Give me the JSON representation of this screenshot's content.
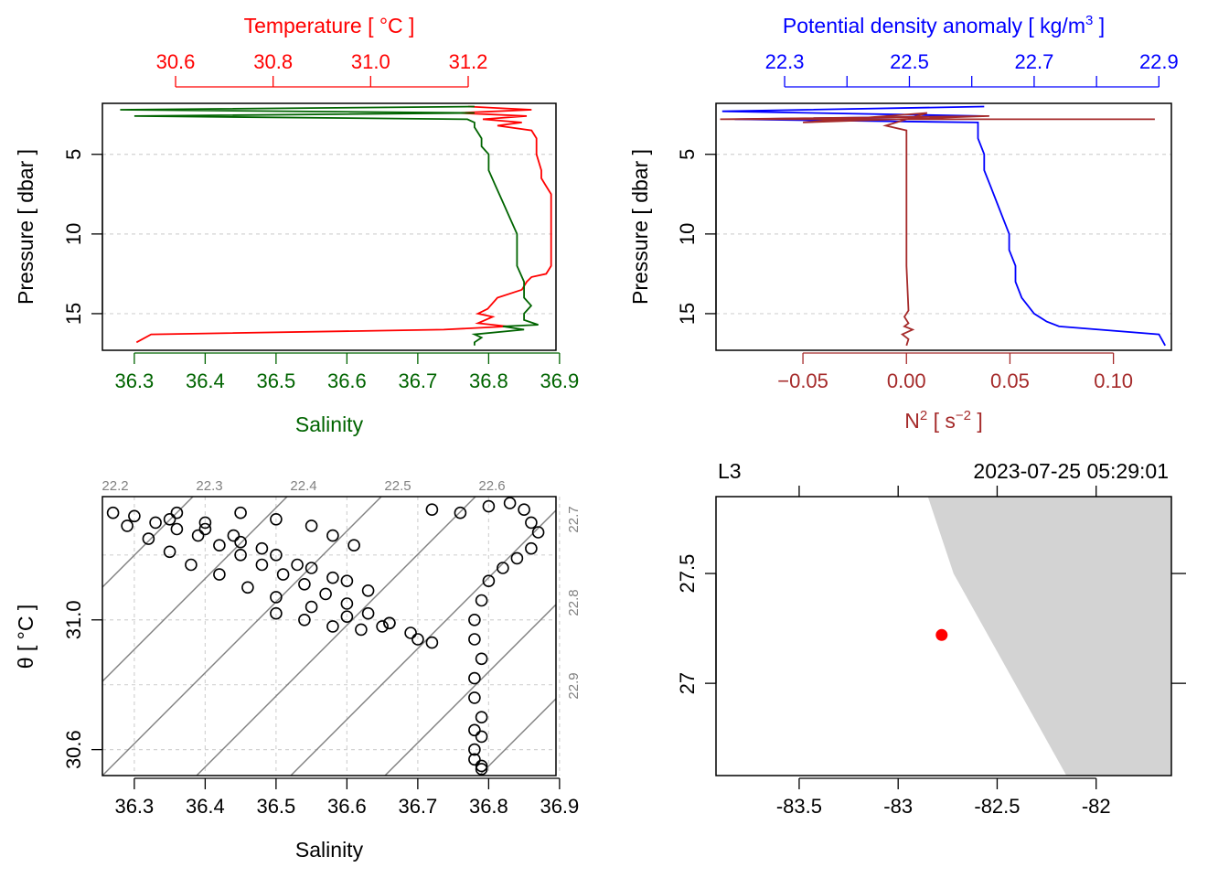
{
  "colors": {
    "temperature": "#ff0000",
    "salinity": "#006400",
    "density": "#0000ff",
    "n2": "#a52a2a",
    "isopycnal": "#808080",
    "grid": "#d3d3d3",
    "land": "#d3d3d3",
    "station": "#ff0000",
    "axis": "#000000"
  },
  "chart_data": [
    {
      "type": "line",
      "panel": "profile-temperature-salinity",
      "y_axis": {
        "label": "Pressure [ dbar ]",
        "range": [
          17.3,
          1.8
        ],
        "ticks": [
          "5",
          "10",
          "15"
        ],
        "reversed": true,
        "grid": true
      },
      "top_axis": {
        "label": "Temperature [ °C ]",
        "range": [
          30.45,
          31.38
        ],
        "ticks": [
          "30.6",
          "30.8",
          "31.0",
          "31.2"
        ]
      },
      "bottom_axis": {
        "label": "Salinity",
        "range": [
          36.255,
          36.895
        ],
        "ticks": [
          "36.3",
          "36.4",
          "36.5",
          "36.6",
          "36.7",
          "36.8",
          "36.9"
        ]
      },
      "series": [
        {
          "variable": "temperature",
          "x": [
            31.2,
            31.33,
            31.18,
            31.32,
            31.23,
            31.31,
            31.26,
            31.33,
            31.34,
            31.34,
            31.35,
            31.35,
            31.36,
            31.37,
            31.37,
            31.37,
            31.36,
            31.33,
            31.32,
            31.31,
            31.26,
            31.24,
            31.22,
            31.25,
            31.22,
            31.28,
            31.15,
            30.55,
            30.52
          ],
          "y": [
            2.0,
            2.2,
            2.4,
            2.6,
            2.8,
            3.0,
            3.2,
            3.5,
            4.0,
            5.0,
            6.0,
            6.5,
            7.0,
            7.5,
            9.0,
            12.0,
            12.5,
            12.7,
            13.0,
            13.5,
            14.0,
            14.7,
            15.0,
            15.2,
            15.6,
            15.8,
            16.0,
            16.3,
            16.8
          ]
        },
        {
          "variable": "salinity",
          "x": [
            36.78,
            36.28,
            36.78,
            36.3,
            36.77,
            36.78,
            36.78,
            36.79,
            36.79,
            36.8,
            36.8,
            36.81,
            36.82,
            36.83,
            36.84,
            36.84,
            36.84,
            36.85,
            36.85,
            36.86,
            36.85,
            36.85,
            36.87,
            36.82,
            36.85,
            36.78,
            36.79,
            36.78,
            36.78
          ],
          "y": [
            2.0,
            2.2,
            2.4,
            2.6,
            2.8,
            3.0,
            3.3,
            4.0,
            4.5,
            5.0,
            6.0,
            7.0,
            8.0,
            9.0,
            10.0,
            11.0,
            12.0,
            13.0,
            14.0,
            14.5,
            15.0,
            15.4,
            15.7,
            15.8,
            16.0,
            16.3,
            16.5,
            16.8,
            17.0
          ]
        }
      ]
    },
    {
      "type": "line",
      "panel": "profile-density-n2",
      "y_axis": {
        "label": "Pressure [ dbar ]",
        "range": [
          17.3,
          1.8
        ],
        "ticks": [
          "5",
          "10",
          "15"
        ],
        "reversed": true,
        "grid": true
      },
      "top_axis": {
        "label_prefix": "Potential density anomaly [ kg/m",
        "label_sup": "3",
        "label_suffix": " ]",
        "range": [
          22.19,
          22.92
        ],
        "ticks": [
          "22.3",
          "",
          "22.5",
          "",
          "22.7",
          "",
          "22.9"
        ]
      },
      "bottom_axis": {
        "label_prefix": "N",
        "label_sup": "2",
        "label_mid": " [ s",
        "label_sup2": "−2",
        "label_suffix": " ]",
        "range": [
          -0.092,
          0.128
        ],
        "ticks": [
          "−0.05",
          "0.00",
          "0.05",
          "0.10"
        ]
      },
      "series": [
        {
          "variable": "density",
          "x": [
            22.62,
            22.2,
            22.62,
            22.22,
            22.61,
            22.61,
            22.62,
            22.62,
            22.63,
            22.64,
            22.65,
            22.66,
            22.66,
            22.67,
            22.67,
            22.68,
            22.7,
            22.72,
            22.74,
            22.9,
            22.91
          ],
          "y": [
            2.0,
            2.3,
            2.6,
            2.8,
            3.0,
            4.0,
            5.0,
            6.0,
            7.0,
            8.0,
            9.0,
            10.0,
            11.0,
            12.0,
            13.0,
            14.0,
            15.0,
            15.5,
            15.8,
            16.3,
            17.0
          ]
        },
        {
          "variable": "N2",
          "x": [
            0.12,
            -0.09,
            0.04,
            -0.05,
            0.01,
            -0.01,
            0.0,
            0.0,
            0.0,
            0.0,
            0.001,
            -0.001,
            0.001,
            -0.001,
            0.003,
            -0.002,
            0.001,
            0.0
          ],
          "y": [
            2.8,
            2.8,
            2.6,
            3.0,
            2.4,
            3.2,
            3.5,
            5.0,
            8.0,
            12.0,
            14.8,
            15.2,
            15.6,
            15.8,
            16.0,
            16.3,
            16.6,
            17.0
          ]
        }
      ]
    },
    {
      "type": "scatter",
      "panel": "TS-diagram",
      "x_axis": {
        "label": "Salinity",
        "range": [
          36.255,
          36.895
        ],
        "ticks": [
          "36.3",
          "36.4",
          "36.5",
          "36.6",
          "36.7",
          "36.8",
          "36.9"
        ]
      },
      "y_axis": {
        "label": "θ [ °C ]",
        "range": [
          30.52,
          31.38
        ],
        "ticks": [
          "30.6",
          "31.0"
        ]
      },
      "isopycnals_top": [
        "22.2",
        "22.3",
        "22.4",
        "22.5",
        "22.6"
      ],
      "isopycnals_right": [
        "22.7",
        "22.8",
        "22.9"
      ],
      "grid": true,
      "series": [
        {
          "name": "",
          "x": [
            36.27,
            36.3,
            36.33,
            36.36,
            36.39,
            36.42,
            36.45,
            36.48,
            36.51,
            36.54,
            36.57,
            36.6,
            36.63,
            36.66,
            36.69,
            36.72,
            36.7,
            36.65,
            36.6,
            36.55,
            36.5,
            36.46,
            36.42,
            36.38,
            36.35,
            36.32,
            36.29,
            36.35,
            36.4,
            36.45,
            36.5,
            36.55,
            36.6,
            36.63,
            36.58,
            36.53,
            36.48,
            36.44,
            36.4,
            36.36,
            36.45,
            36.5,
            36.55,
            36.58,
            36.61,
            36.5,
            36.54,
            36.58,
            36.62,
            36.66,
            36.72,
            36.76,
            36.8,
            36.83,
            36.85,
            36.86,
            36.87,
            36.86,
            36.84,
            36.82,
            36.8,
            36.79,
            36.78,
            36.78,
            36.79,
            36.78,
            36.78,
            36.79,
            36.78,
            36.79,
            36.78,
            36.78,
            36.79,
            36.79
          ],
          "y": [
            31.33,
            31.32,
            31.3,
            31.28,
            31.26,
            31.23,
            31.2,
            31.17,
            31.14,
            31.11,
            31.08,
            31.05,
            31.02,
            30.99,
            30.96,
            30.93,
            30.94,
            30.98,
            31.01,
            31.04,
            31.07,
            31.1,
            31.14,
            31.17,
            31.21,
            31.25,
            31.29,
            31.31,
            31.28,
            31.24,
            31.2,
            31.16,
            31.12,
            31.09,
            31.13,
            31.17,
            31.22,
            31.26,
            31.3,
            31.33,
            31.33,
            31.31,
            31.29,
            31.26,
            31.23,
            31.02,
            31.0,
            30.98,
            30.97,
            30.99,
            31.34,
            31.33,
            31.35,
            31.36,
            31.34,
            31.3,
            31.27,
            31.22,
            31.19,
            31.16,
            31.12,
            31.06,
            31.0,
            30.94,
            30.88,
            30.82,
            30.76,
            30.7,
            30.66,
            30.64,
            30.6,
            30.57,
            30.55,
            30.54
          ]
        }
      ]
    },
    {
      "type": "map",
      "panel": "station-map",
      "station": "L3",
      "time": "2023-07-25 05:29:01",
      "x_axis": {
        "range": [
          -83.92,
          -81.62
        ],
        "ticks": [
          "-83.5",
          "-83",
          "-82.5",
          "-82"
        ]
      },
      "y_axis": {
        "range": [
          26.58,
          27.85
        ],
        "ticks": [
          "27",
          "27.5"
        ]
      },
      "coastline": {
        "lon": [
          -82.85,
          -82.72,
          -82.15,
          -81.62,
          -81.62
        ],
        "lat": [
          27.85,
          27.5,
          26.58,
          26.58,
          27.85
        ]
      },
      "station_position": {
        "lon": -82.78,
        "lat": 27.22
      }
    }
  ]
}
